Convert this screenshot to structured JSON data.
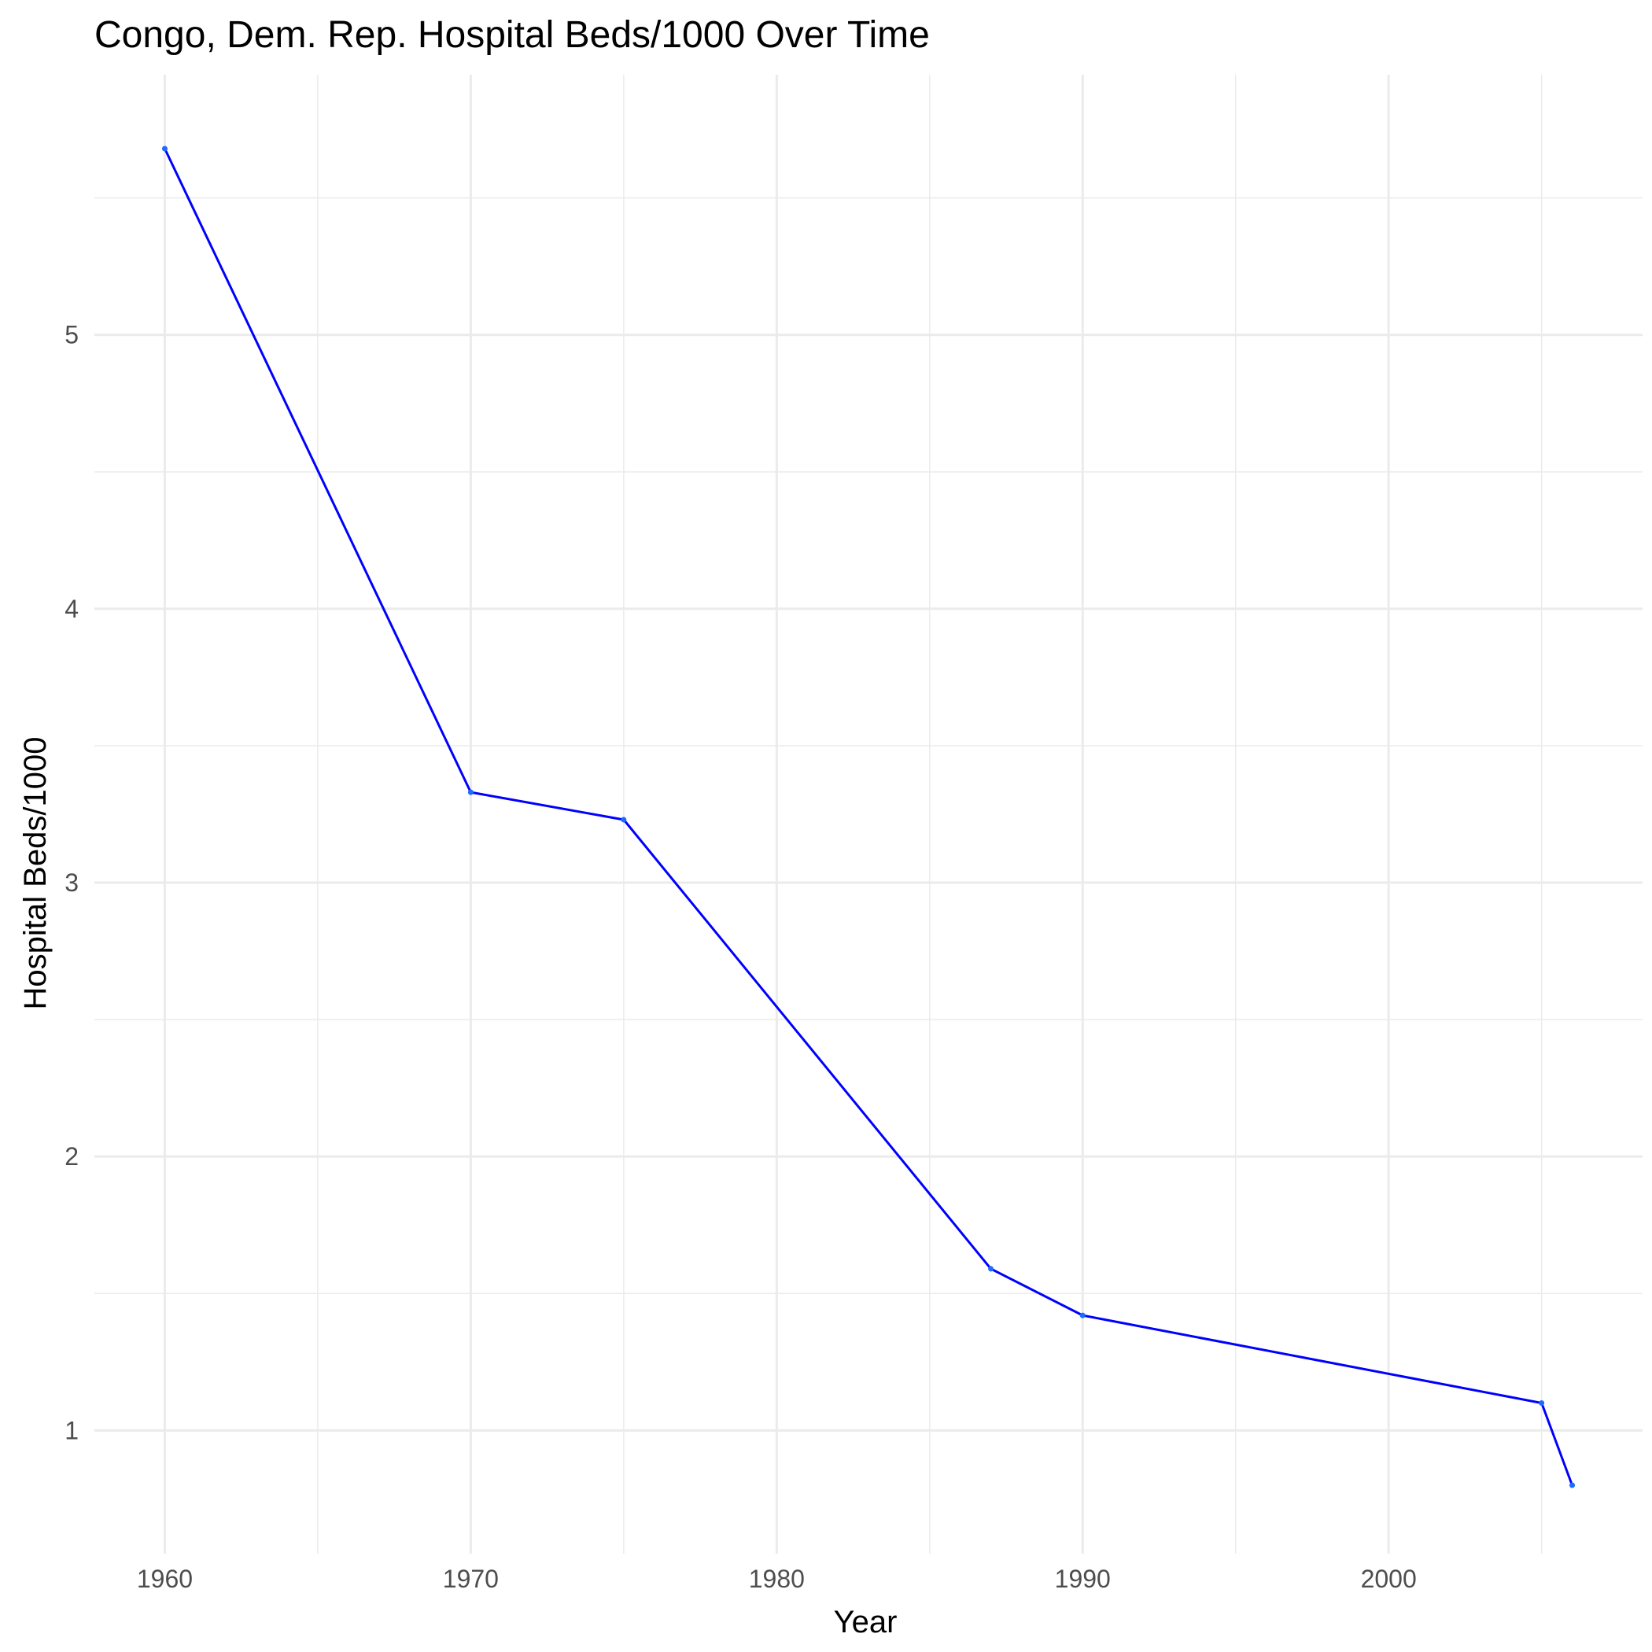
{
  "chart_data": {
    "type": "line",
    "title": "Congo, Dem. Rep. Hospital Beds/1000 Over Time",
    "xlabel": "Year",
    "ylabel": "Hospital Beds/1000",
    "x_ticks": [
      1960,
      1970,
      1980,
      1990,
      2000
    ],
    "y_ticks": [
      1,
      2,
      3,
      4,
      5
    ],
    "xlim": [
      1957.7,
      2008.3
    ],
    "ylim": [
      0.55,
      5.95
    ],
    "grid": true,
    "legend": "none",
    "colors": {
      "line": "#0000ff",
      "point": "#1e6bff",
      "grid": "#ebebeb"
    },
    "series": [
      {
        "x": [
          1960,
          1970,
          1975,
          1987,
          1990,
          2005,
          2006
        ],
        "values": [
          5.68,
          3.33,
          3.23,
          1.59,
          1.42,
          1.1,
          0.8
        ]
      }
    ]
  }
}
